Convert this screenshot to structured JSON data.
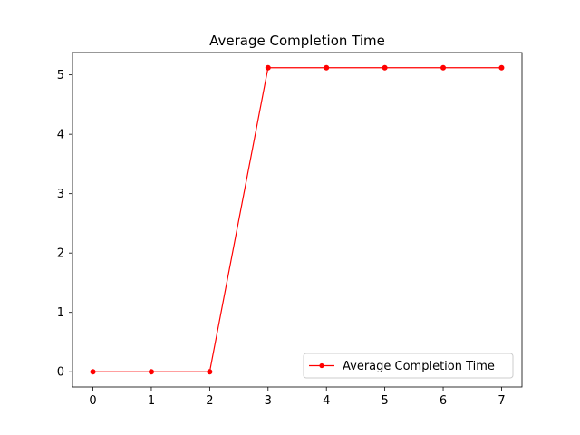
{
  "chart_data": {
    "type": "line",
    "title": "Average Completion Time",
    "xlabel": "",
    "ylabel": "",
    "x": [
      0,
      1,
      2,
      3,
      4,
      5,
      6,
      7
    ],
    "series": [
      {
        "name": "Average Completion Time",
        "values": [
          0,
          0,
          0,
          5.12,
          5.12,
          5.12,
          5.12,
          5.12
        ],
        "color": "#ff0000",
        "marker": "circle"
      }
    ],
    "xlim": [
      -0.35,
      7.35
    ],
    "ylim": [
      -0.256,
      5.376
    ],
    "xticks": [
      0,
      1,
      2,
      3,
      4,
      5,
      6,
      7
    ],
    "yticks": [
      0,
      1,
      2,
      3,
      4,
      5
    ],
    "grid": false,
    "legend_position": "lower-right"
  }
}
